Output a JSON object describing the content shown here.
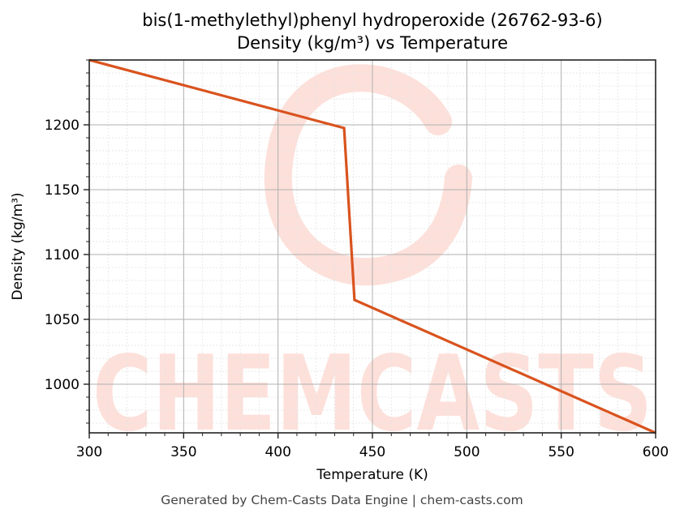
{
  "chart_data": {
    "type": "line",
    "title": "bis(1-methylethyl)phenyl hydroperoxide (26762-93-6)",
    "subtitle": "Density (kg/m³) vs Temperature",
    "xlabel": "Temperature (K)",
    "ylabel": "Density (kg/m³)",
    "xlim": [
      300,
      600
    ],
    "ylim": [
      962.5,
      1250
    ],
    "x_ticks": [
      300,
      350,
      400,
      450,
      500,
      550,
      600
    ],
    "y_ticks": [
      1000,
      1050,
      1100,
      1150,
      1200
    ],
    "grid": {
      "major": true,
      "minor": true,
      "x_minor_step": 10,
      "y_minor_step": 10
    },
    "legend": null,
    "series": [
      {
        "name": "Density",
        "color": "#d9531e",
        "x": [
          300,
          435,
          440.5,
          600
        ],
        "y": [
          1250,
          1197.5,
          1065,
          962.5
        ]
      }
    ]
  },
  "footer": "Generated by Chem-Casts Data Engine | chem-casts.com",
  "watermark": {
    "text": "CHEMCASTS",
    "color": "#fde0da"
  },
  "colors": {
    "line": "#d9531e",
    "axis": "#222222",
    "major_grid": "#b0b0b0",
    "minor_grid": "#e4e4e4",
    "footer": "#444444"
  }
}
